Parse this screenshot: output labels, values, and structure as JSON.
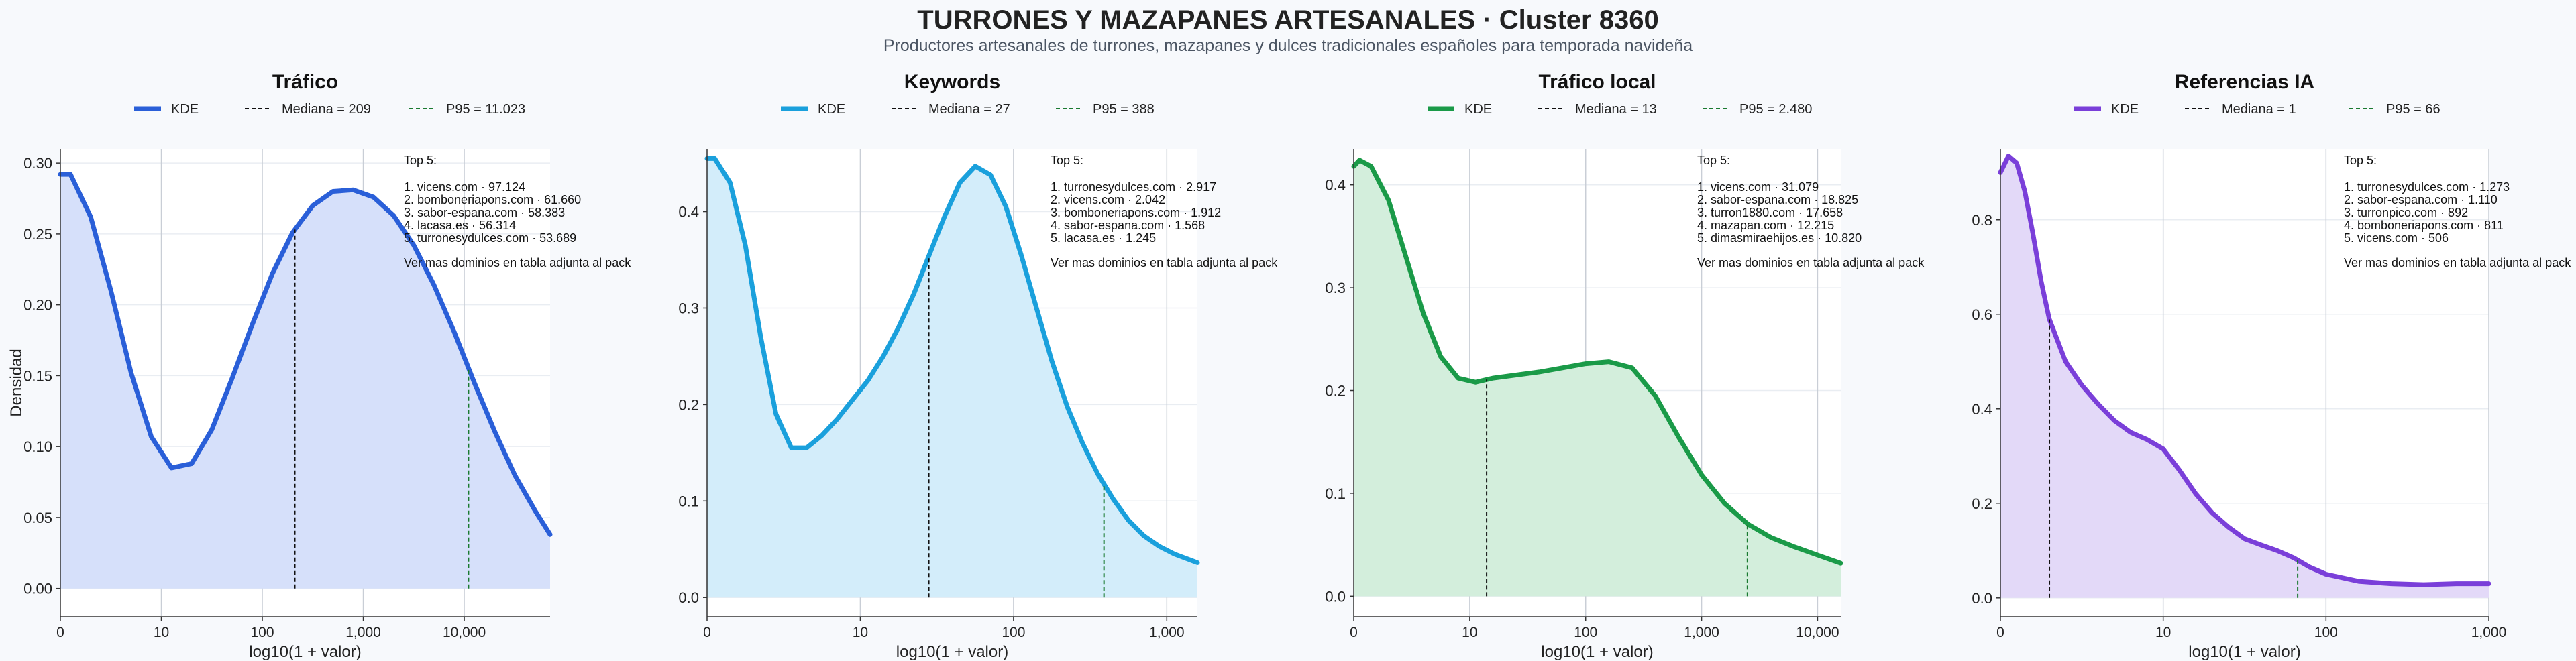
{
  "title": "TURRONES Y MAZAPANES ARTESANALES · Cluster 8360",
  "subtitle": "Productores artesanales de turrones, mazapanes y dulces tradicionales españoles para temporada navideña",
  "shared": {
    "ylabel": "Densidad",
    "xlabel": "log10(1 + valor)",
    "legend_kde": "KDE",
    "top_label": "Top 5:",
    "footer_note": "Ver mas dominios en tabla adjunta al pack"
  },
  "chart_data": [
    {
      "type": "area",
      "title": "Tráfico",
      "color": "#2a5fd8",
      "fill": "#d6e0fa",
      "xlabel": "log10(1 + valor)",
      "ylabel": "Densidad",
      "xlim": [
        0,
        4.85
      ],
      "ylim": [
        -0.02,
        0.31
      ],
      "xticks": [
        0,
        1,
        2,
        3,
        4
      ],
      "xticklabels": [
        "0",
        "10",
        "100",
        "1,000",
        "10,000"
      ],
      "yticks": [
        0,
        0.05,
        0.1,
        0.15,
        0.2,
        0.25,
        0.3
      ],
      "yticklabels": [
        "0.00",
        "0.05",
        "0.10",
        "0.15",
        "0.20",
        "0.25",
        "0.30"
      ],
      "legend": {
        "kde": "KDE",
        "median": "Mediana = 209",
        "p95": "P95 = 11.023"
      },
      "median_x": 2.322,
      "p95_x": 4.042,
      "kde": {
        "x": [
          0,
          0.1,
          0.3,
          0.5,
          0.7,
          0.9,
          1.1,
          1.3,
          1.5,
          1.7,
          1.9,
          2.1,
          2.3,
          2.5,
          2.7,
          2.9,
          3.1,
          3.3,
          3.5,
          3.7,
          3.9,
          4.1,
          4.3,
          4.5,
          4.7,
          4.85
        ],
        "y": [
          0.292,
          0.292,
          0.262,
          0.21,
          0.152,
          0.107,
          0.085,
          0.088,
          0.112,
          0.148,
          0.186,
          0.222,
          0.251,
          0.27,
          0.28,
          0.281,
          0.276,
          0.263,
          0.242,
          0.214,
          0.181,
          0.145,
          0.111,
          0.08,
          0.055,
          0.038
        ]
      },
      "top5": [
        "1. vicens.com · 97.124",
        "2. bomboneriapons.com · 61.660",
        "3. sabor-espana.com · 58.383",
        "4. lacasa.es · 56.314",
        "5. turronesydulces.com · 53.689"
      ]
    },
    {
      "type": "area",
      "title": "Keywords",
      "color": "#1aa0dc",
      "fill": "#d3edfa",
      "xlabel": "log10(1 + valor)",
      "ylabel": "Densidad",
      "xlim": [
        0,
        3.2
      ],
      "ylim": [
        -0.02,
        0.465
      ],
      "xticks": [
        0,
        1,
        2,
        3
      ],
      "xticklabels": [
        "0",
        "10",
        "100",
        "1,000"
      ],
      "yticks": [
        0,
        0.1,
        0.2,
        0.3,
        0.4
      ],
      "yticklabels": [
        "0.0",
        "0.1",
        "0.2",
        "0.3",
        "0.4"
      ],
      "legend": {
        "kde": "KDE",
        "median": "Mediana = 27",
        "p95": "P95 = 388"
      },
      "median_x": 1.447,
      "p95_x": 2.59,
      "kde": {
        "x": [
          0,
          0.05,
          0.15,
          0.25,
          0.35,
          0.45,
          0.55,
          0.65,
          0.75,
          0.85,
          0.95,
          1.05,
          1.15,
          1.25,
          1.35,
          1.45,
          1.55,
          1.65,
          1.75,
          1.85,
          1.95,
          2.05,
          2.15,
          2.25,
          2.35,
          2.45,
          2.55,
          2.65,
          2.75,
          2.85,
          2.95,
          3.05,
          3.2
        ],
        "y": [
          0.455,
          0.455,
          0.43,
          0.365,
          0.27,
          0.19,
          0.155,
          0.155,
          0.168,
          0.185,
          0.205,
          0.225,
          0.25,
          0.28,
          0.315,
          0.355,
          0.395,
          0.43,
          0.447,
          0.438,
          0.405,
          0.355,
          0.3,
          0.245,
          0.198,
          0.16,
          0.128,
          0.102,
          0.08,
          0.064,
          0.053,
          0.045,
          0.036
        ]
      },
      "top5": [
        "1. turronesydulces.com · 2.917",
        "2. vicens.com · 2.042",
        "3. bomboneriapons.com · 1.912",
        "4. sabor-espana.com · 1.568",
        "5. lacasa.es · 1.245"
      ]
    },
    {
      "type": "area",
      "title": "Tráfico local",
      "color": "#1a9a48",
      "fill": "#d3eedc",
      "xlabel": "log10(1 + valor)",
      "ylabel": "Densidad",
      "xlim": [
        0,
        4.2
      ],
      "ylim": [
        -0.02,
        0.435
      ],
      "xticks": [
        0,
        1,
        2,
        3,
        4
      ],
      "xticklabels": [
        "0",
        "10",
        "100",
        "1,000",
        "10,000"
      ],
      "yticks": [
        0,
        0.1,
        0.2,
        0.3,
        0.4
      ],
      "yticklabels": [
        "0.0",
        "0.1",
        "0.2",
        "0.3",
        "0.4"
      ],
      "legend": {
        "kde": "KDE",
        "median": "Mediana = 13",
        "p95": "P95 = 2.480"
      },
      "median_x": 1.146,
      "p95_x": 3.395,
      "kde": {
        "x": [
          0,
          0.05,
          0.15,
          0.3,
          0.45,
          0.6,
          0.75,
          0.9,
          1.05,
          1.2,
          1.4,
          1.6,
          1.8,
          2.0,
          2.2,
          2.4,
          2.6,
          2.8,
          3.0,
          3.2,
          3.4,
          3.6,
          3.8,
          4.0,
          4.2
        ],
        "y": [
          0.418,
          0.424,
          0.418,
          0.385,
          0.33,
          0.275,
          0.233,
          0.212,
          0.208,
          0.212,
          0.215,
          0.218,
          0.222,
          0.226,
          0.228,
          0.222,
          0.195,
          0.155,
          0.118,
          0.09,
          0.07,
          0.057,
          0.048,
          0.04,
          0.032
        ]
      },
      "top5": [
        "1. vicens.com · 31.079",
        "2. sabor-espana.com · 18.825",
        "3. turron1880.com · 17.658",
        "4. mazapan.com · 12.215",
        "5. dimasmiraehijos.es · 10.820"
      ]
    },
    {
      "type": "area",
      "title": "Referencias IA",
      "color": "#7a3fd9",
      "fill": "#e3d9f8",
      "xlabel": "log10(1 + valor)",
      "ylabel": "Densidad",
      "xlim": [
        0,
        3.0
      ],
      "ylim": [
        -0.04,
        0.95
      ],
      "xticks": [
        0,
        1,
        2,
        3
      ],
      "xticklabels": [
        "0",
        "10",
        "100",
        "1,000"
      ],
      "yticks": [
        0,
        0.2,
        0.4,
        0.6,
        0.8
      ],
      "yticklabels": [
        "0.0",
        "0.2",
        "0.4",
        "0.6",
        "0.8"
      ],
      "legend": {
        "kde": "KDE",
        "median": "Mediana = 1",
        "p95": "P95 = 66"
      },
      "median_x": 0.301,
      "p95_x": 1.826,
      "kde": {
        "x": [
          0,
          0.05,
          0.1,
          0.15,
          0.2,
          0.25,
          0.3,
          0.4,
          0.5,
          0.6,
          0.7,
          0.8,
          0.9,
          1.0,
          1.1,
          1.2,
          1.3,
          1.4,
          1.5,
          1.6,
          1.7,
          1.8,
          1.9,
          2.0,
          2.2,
          2.4,
          2.6,
          2.8,
          3.0
        ],
        "y": [
          0.9,
          0.935,
          0.92,
          0.86,
          0.77,
          0.67,
          0.59,
          0.5,
          0.45,
          0.41,
          0.375,
          0.35,
          0.335,
          0.315,
          0.27,
          0.22,
          0.18,
          0.15,
          0.125,
          0.112,
          0.1,
          0.085,
          0.065,
          0.05,
          0.035,
          0.03,
          0.028,
          0.03,
          0.03
        ]
      },
      "top5": [
        "1. turronesydulces.com · 1.273",
        "2. sabor-espana.com · 1.110",
        "3. turronpico.com · 892",
        "4. bomboneriapons.com · 811",
        "5. vicens.com · 506"
      ]
    }
  ]
}
